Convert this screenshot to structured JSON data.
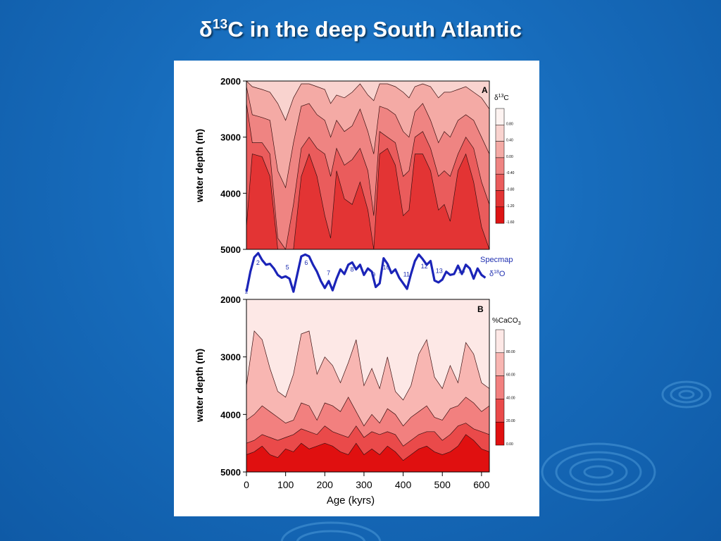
{
  "slide": {
    "title_delta": "δ",
    "title_sup": "13",
    "title_rest": "C in the deep South Atlantic",
    "colors": {
      "background": "#176cbc",
      "title": "#ffffff",
      "card": "#ffffff",
      "curve": "#1b24b8"
    }
  },
  "chart_data": [
    {
      "type": "heatmap",
      "panel": "A",
      "ylabel": "water depth (m)",
      "yticks": [
        2000,
        3000,
        4000,
        5000
      ],
      "ylim": [
        2000,
        5000
      ],
      "xlim": [
        0,
        620
      ],
      "legend_title_main": "δ",
      "legend_title_sup": "13",
      "legend_title_end": "C",
      "colorbar_ticks": [
        "0.80",
        "0.40",
        "0.00",
        "-0.40",
        "-0.80",
        "-1.20",
        "-1.60"
      ],
      "colorbar_colors": [
        "#fdf3f1",
        "#f9d3cf",
        "#f4aaa5",
        "#ef8482",
        "#ea5c5c",
        "#e33434",
        "#dd1414"
      ],
      "depth_profiles": [
        {
          "x": 0,
          "d": [
            2000,
            2100,
            2400,
            4600
          ]
        },
        {
          "x": 15,
          "d": [
            2100,
            2600,
            3100,
            3300
          ]
        },
        {
          "x": 40,
          "d": [
            2150,
            2650,
            3100,
            3350
          ]
        },
        {
          "x": 60,
          "d": [
            2200,
            2700,
            3300,
            3700
          ]
        },
        {
          "x": 80,
          "d": [
            2400,
            3600,
            4800,
            5000
          ]
        },
        {
          "x": 100,
          "d": [
            2700,
            3900,
            5000,
            5000
          ]
        },
        {
          "x": 120,
          "d": [
            2300,
            3100,
            4200,
            5000
          ]
        },
        {
          "x": 140,
          "d": [
            2050,
            2450,
            3200,
            3700
          ]
        },
        {
          "x": 160,
          "d": [
            2050,
            2400,
            3000,
            3300
          ]
        },
        {
          "x": 180,
          "d": [
            2100,
            2600,
            3200,
            3700
          ]
        },
        {
          "x": 200,
          "d": [
            2150,
            2700,
            3300,
            4400
          ]
        },
        {
          "x": 215,
          "d": [
            2400,
            3000,
            3700,
            4800
          ]
        },
        {
          "x": 230,
          "d": [
            2250,
            2700,
            3200,
            3600
          ]
        },
        {
          "x": 250,
          "d": [
            2300,
            2900,
            3500,
            4100
          ]
        },
        {
          "x": 270,
          "d": [
            2200,
            2800,
            3400,
            4200
          ]
        },
        {
          "x": 290,
          "d": [
            2050,
            2500,
            3200,
            3800
          ]
        },
        {
          "x": 310,
          "d": [
            2250,
            2900,
            3600,
            4300
          ]
        },
        {
          "x": 325,
          "d": [
            2350,
            3300,
            4400,
            5000
          ]
        },
        {
          "x": 340,
          "d": [
            2050,
            2450,
            2900,
            3300
          ]
        },
        {
          "x": 360,
          "d": [
            2050,
            2500,
            3000,
            3200
          ]
        },
        {
          "x": 380,
          "d": [
            2100,
            2600,
            3100,
            3500
          ]
        },
        {
          "x": 400,
          "d": [
            2200,
            2900,
            3700,
            4400
          ]
        },
        {
          "x": 415,
          "d": [
            2300,
            3000,
            3600,
            4300
          ]
        },
        {
          "x": 430,
          "d": [
            2100,
            2550,
            3000,
            3300
          ]
        },
        {
          "x": 450,
          "d": [
            2050,
            2400,
            2900,
            3300
          ]
        },
        {
          "x": 470,
          "d": [
            2100,
            2700,
            3200,
            3600
          ]
        },
        {
          "x": 490,
          "d": [
            2300,
            3100,
            3700,
            4300
          ]
        },
        {
          "x": 505,
          "d": [
            2200,
            2900,
            3600,
            4200
          ]
        },
        {
          "x": 520,
          "d": [
            2200,
            3000,
            3700,
            4500
          ]
        },
        {
          "x": 540,
          "d": [
            2150,
            2700,
            3300,
            3600
          ]
        },
        {
          "x": 560,
          "d": [
            2100,
            2600,
            3000,
            3300
          ]
        },
        {
          "x": 580,
          "d": [
            2200,
            2700,
            3200,
            3800
          ]
        },
        {
          "x": 600,
          "d": [
            2300,
            3000,
            3800,
            4600
          ]
        },
        {
          "x": 620,
          "d": [
            2500,
            3300,
            4200,
            5000
          ]
        }
      ]
    },
    {
      "type": "line",
      "series": [
        {
          "name": "Specmap δ18O",
          "x": [
            0,
            10,
            20,
            30,
            40,
            50,
            60,
            70,
            80,
            90,
            100,
            110,
            120,
            130,
            140,
            150,
            160,
            170,
            180,
            190,
            200,
            210,
            220,
            230,
            240,
            250,
            260,
            270,
            280,
            290,
            300,
            310,
            320,
            330,
            340,
            350,
            360,
            370,
            380,
            390,
            400,
            410,
            420,
            430,
            440,
            450,
            460,
            470,
            480,
            490,
            500,
            510,
            520,
            530,
            540,
            550,
            560,
            570,
            580,
            590,
            600,
            610
          ],
          "y": [
            0.12,
            0.55,
            0.86,
            0.95,
            0.8,
            0.7,
            0.72,
            0.62,
            0.48,
            0.42,
            0.45,
            0.4,
            0.12,
            0.5,
            0.88,
            0.92,
            0.88,
            0.7,
            0.55,
            0.35,
            0.2,
            0.35,
            0.15,
            0.4,
            0.6,
            0.5,
            0.7,
            0.75,
            0.6,
            0.7,
            0.48,
            0.62,
            0.55,
            0.22,
            0.3,
            0.84,
            0.72,
            0.52,
            0.6,
            0.42,
            0.3,
            0.18,
            0.5,
            0.78,
            0.92,
            0.82,
            0.7,
            0.78,
            0.36,
            0.32,
            0.38,
            0.55,
            0.48,
            0.5,
            0.68,
            0.5,
            0.7,
            0.62,
            0.4,
            0.62,
            0.48,
            0.42
          ]
        }
      ],
      "label_line1": "Specmap",
      "label_d": "δ",
      "label_sup": "18",
      "label_o": "O",
      "stage_labels": [
        {
          "text": "1",
          "x": -5,
          "y": 0.08
        },
        {
          "text": "2",
          "x": 25,
          "y": 0.7
        },
        {
          "text": "5",
          "x": 100,
          "y": 0.6
        },
        {
          "text": "6",
          "x": 148,
          "y": 0.7
        },
        {
          "text": "7",
          "x": 205,
          "y": 0.48
        },
        {
          "text": "8",
          "x": 265,
          "y": 0.55
        },
        {
          "text": "9",
          "x": 320,
          "y": 0.44
        },
        {
          "text": "10",
          "x": 348,
          "y": 0.6
        },
        {
          "text": "11",
          "x": 400,
          "y": 0.45
        },
        {
          "text": "12",
          "x": 445,
          "y": 0.62
        },
        {
          "text": "13",
          "x": 483,
          "y": 0.52
        },
        {
          "text": "14",
          "x": 540,
          "y": 0.52
        }
      ]
    },
    {
      "type": "heatmap",
      "panel": "B",
      "ylabel": "water depth (m)",
      "xlabel": "Age (kyrs)",
      "yticks": [
        2000,
        3000,
        4000,
        5000
      ],
      "xticks": [
        0,
        100,
        200,
        300,
        400,
        500,
        600
      ],
      "ylim": [
        2000,
        5000
      ],
      "xlim": [
        0,
        620
      ],
      "legend_title_main": "%CaCO",
      "legend_title_sub": "3",
      "colorbar_ticks": [
        "80.00",
        "60.00",
        "40.00",
        "20.00",
        "0.00"
      ],
      "colorbar_colors": [
        "#fde8e6",
        "#f8b6b2",
        "#f2807f",
        "#ea4a4a",
        "#e01010"
      ],
      "depth_profiles": [
        {
          "x": 0,
          "d": [
            3500,
            4100,
            4500,
            4700
          ]
        },
        {
          "x": 20,
          "d": [
            2550,
            4000,
            4450,
            4650
          ]
        },
        {
          "x": 40,
          "d": [
            2700,
            3850,
            4350,
            4550
          ]
        },
        {
          "x": 60,
          "d": [
            3200,
            3950,
            4400,
            4700
          ]
        },
        {
          "x": 80,
          "d": [
            3600,
            4050,
            4450,
            4750
          ]
        },
        {
          "x": 100,
          "d": [
            3700,
            4150,
            4400,
            4600
          ]
        },
        {
          "x": 120,
          "d": [
            3300,
            4100,
            4350,
            4650
          ]
        },
        {
          "x": 140,
          "d": [
            2600,
            3800,
            4250,
            4500
          ]
        },
        {
          "x": 160,
          "d": [
            2550,
            3850,
            4300,
            4600
          ]
        },
        {
          "x": 180,
          "d": [
            3300,
            4100,
            4350,
            4550
          ]
        },
        {
          "x": 200,
          "d": [
            3000,
            3800,
            4200,
            4500
          ]
        },
        {
          "x": 220,
          "d": [
            3150,
            3850,
            4300,
            4550
          ]
        },
        {
          "x": 240,
          "d": [
            3450,
            3950,
            4350,
            4650
          ]
        },
        {
          "x": 260,
          "d": [
            3100,
            3700,
            4400,
            4700
          ]
        },
        {
          "x": 280,
          "d": [
            2700,
            3950,
            4200,
            4500
          ]
        },
        {
          "x": 300,
          "d": [
            3500,
            4200,
            4400,
            4700
          ]
        },
        {
          "x": 320,
          "d": [
            3200,
            4000,
            4300,
            4600
          ]
        },
        {
          "x": 340,
          "d": [
            3550,
            4150,
            4350,
            4700
          ]
        },
        {
          "x": 360,
          "d": [
            3000,
            3900,
            4300,
            4550
          ]
        },
        {
          "x": 380,
          "d": [
            3600,
            4000,
            4350,
            4650
          ]
        },
        {
          "x": 400,
          "d": [
            3750,
            4200,
            4550,
            4800
          ]
        },
        {
          "x": 420,
          "d": [
            3500,
            4050,
            4450,
            4700
          ]
        },
        {
          "x": 440,
          "d": [
            2950,
            3950,
            4350,
            4600
          ]
        },
        {
          "x": 460,
          "d": [
            2700,
            3850,
            4300,
            4550
          ]
        },
        {
          "x": 480,
          "d": [
            3350,
            4050,
            4300,
            4650
          ]
        },
        {
          "x": 500,
          "d": [
            3550,
            4100,
            4450,
            4700
          ]
        },
        {
          "x": 520,
          "d": [
            3150,
            3900,
            4350,
            4650
          ]
        },
        {
          "x": 540,
          "d": [
            3450,
            3850,
            4200,
            4550
          ]
        },
        {
          "x": 560,
          "d": [
            2750,
            3700,
            4150,
            4350
          ]
        },
        {
          "x": 580,
          "d": [
            2950,
            3800,
            4250,
            4450
          ]
        },
        {
          "x": 600,
          "d": [
            3450,
            3950,
            4300,
            4600
          ]
        },
        {
          "x": 620,
          "d": [
            3550,
            3850,
            4350,
            4650
          ]
        }
      ]
    }
  ]
}
